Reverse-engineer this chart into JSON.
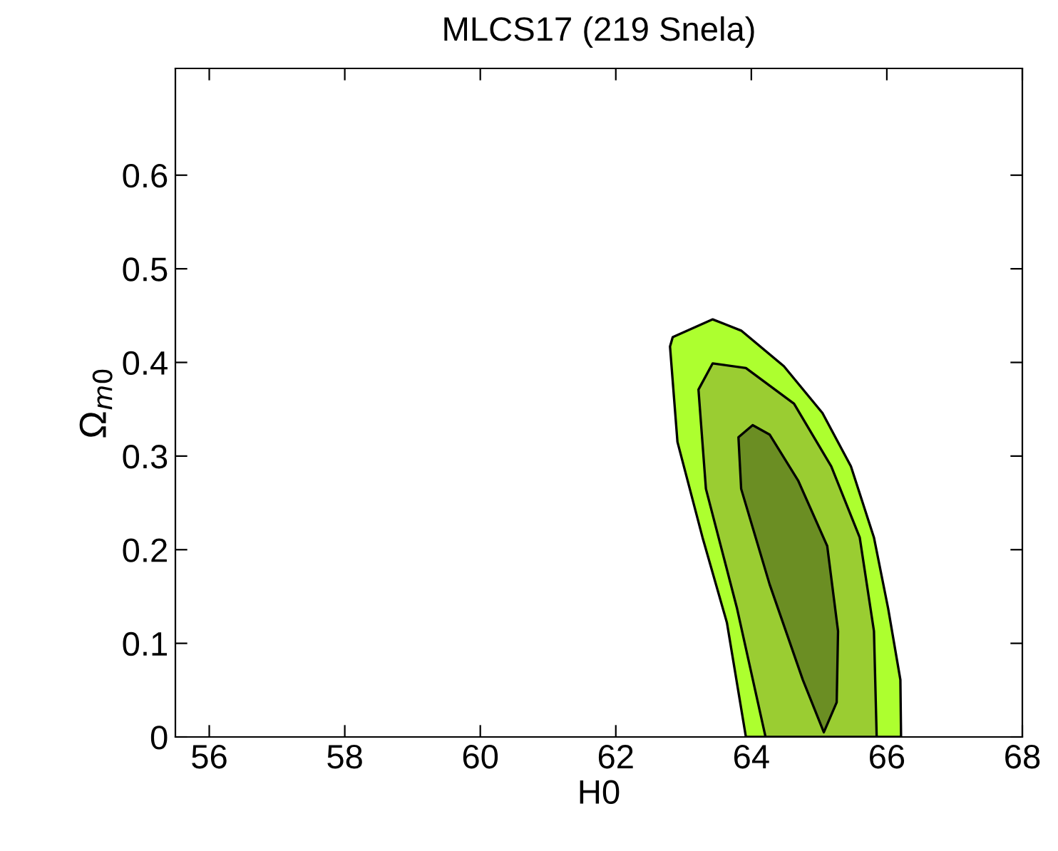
{
  "chart_data": {
    "type": "area",
    "title": "MLCS17 (219 Snela)",
    "xlabel": "H0",
    "ylabel": "Ω$_{m0}$",
    "xlim": [
      55.5,
      68
    ],
    "xticks": [
      56,
      58,
      60,
      62,
      64,
      66,
      68
    ],
    "ylim": [
      0,
      0.714
    ],
    "yticks": [
      0,
      0.1,
      0.2,
      0.3,
      0.4,
      0.5,
      0.6
    ],
    "grid": false,
    "legend": false,
    "series": [
      {
        "color": "#adff2f",
        "x": [
          63.43,
          62.84,
          62.8,
          62.91,
          63.28,
          63.64,
          63.92,
          66.21,
          66.2,
          66.02,
          65.81,
          65.47,
          65.05,
          64.48,
          63.85
        ],
        "values": [
          0.446,
          0.427,
          0.417,
          0.315,
          0.213,
          0.122,
          0,
          0,
          0.061,
          0.137,
          0.213,
          0.289,
          0.346,
          0.396,
          0.434
        ]
      },
      {
        "color": "#9acd32",
        "x": [
          63.43,
          63.22,
          63.33,
          63.79,
          64.21,
          65.85,
          65.81,
          65.6,
          65.18,
          64.63,
          63.92
        ],
        "values": [
          0.399,
          0.371,
          0.265,
          0.137,
          0,
          0,
          0.113,
          0.213,
          0.289,
          0.356,
          0.394
        ]
      },
      {
        "color": "#6b8e23",
        "x": [
          64.02,
          63.81,
          63.85,
          64.27,
          64.76,
          65.07,
          65.26,
          65.28,
          65.12,
          64.69,
          64.27
        ],
        "values": [
          0.333,
          0.32,
          0.265,
          0.163,
          0.061,
          0.005,
          0.037,
          0.113,
          0.204,
          0.274,
          0.323
        ]
      }
    ]
  }
}
